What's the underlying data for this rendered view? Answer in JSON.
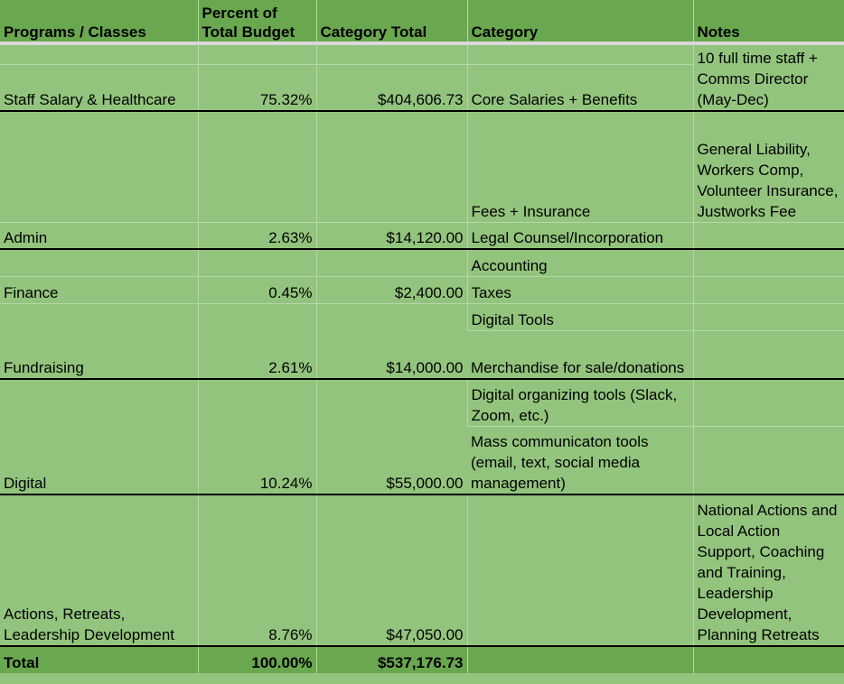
{
  "headers": {
    "programs": "Programs / Classes",
    "percent_line1": "Percent of",
    "percent_line2": "Total Budget",
    "category_total": "Category Total",
    "category": "Category",
    "notes": "Notes"
  },
  "rows": [
    {
      "program": "",
      "percent": "",
      "total": "",
      "category": "",
      "notes": "10 full time staff + Comms Director (May-Dec)"
    },
    {
      "program": "Staff Salary & Healthcare",
      "percent": "75.32%",
      "total": "$404,606.73",
      "category": "Core Salaries + Benefits",
      "notes": ""
    },
    {
      "program": "",
      "percent": "",
      "total": "",
      "category": "Fees + Insurance",
      "notes": "General Liability, Workers Comp, Volunteer Insurance, Justworks Fee"
    },
    {
      "program": "Admin",
      "percent": "2.63%",
      "total": "$14,120.00",
      "category": "Legal Counsel/Incorporation",
      "notes": ""
    },
    {
      "program": "",
      "percent": "",
      "total": "",
      "category": "Accounting",
      "notes": ""
    },
    {
      "program": "Finance",
      "percent": "0.45%",
      "total": "$2,400.00",
      "category": "Taxes",
      "notes": ""
    },
    {
      "program": "",
      "percent": "",
      "total": "",
      "category": "Digital Tools",
      "notes": ""
    },
    {
      "program": "Fundraising",
      "percent": "2.61%",
      "total": "$14,000.00",
      "category": "Merchandise for sale/donations",
      "notes": ""
    },
    {
      "program": "",
      "percent": "",
      "total": "",
      "category": "Digital organizing tools (Slack, Zoom, etc.)",
      "notes": ""
    },
    {
      "program": "Digital",
      "percent": "10.24%",
      "total": "$55,000.00",
      "category": "Mass communicaton tools (email, text, social media management)",
      "notes": ""
    },
    {
      "program": "",
      "percent": "",
      "total": "",
      "category": "",
      "notes": "National Actions and Local Action Support, Coaching and Training, Leadership Development, Planning Retreats"
    },
    {
      "program": "Actions, Retreats, Leadership Development",
      "percent": "8.76%",
      "total": "$47,050.00",
      "category": "",
      "notes": ""
    }
  ],
  "total": {
    "label": "Total",
    "percent": "100.00%",
    "amount": "$537,176.73",
    "category": "",
    "notes": ""
  },
  "colors": {
    "header_bg": "#6aa84f",
    "cell_bg": "#93c47d",
    "gridline": "#b6d7a8",
    "section_border": "#000000"
  }
}
